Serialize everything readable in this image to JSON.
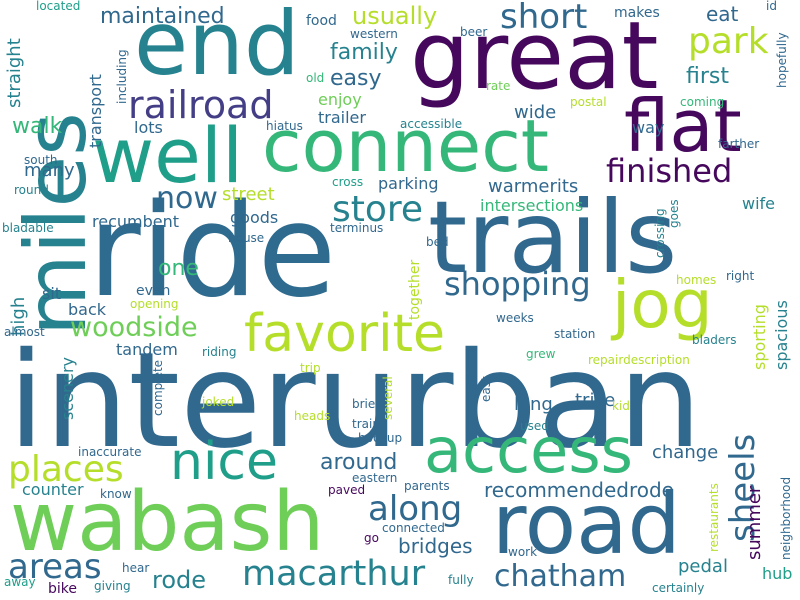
{
  "palette": {
    "dark_purple": "#46085c",
    "indigo": "#433e85",
    "blue": "#31688e",
    "teal": "#26828e",
    "green_teal": "#1f9e89",
    "green": "#35b779",
    "lime": "#6ece58",
    "yellow_green": "#b5de2b"
  },
  "words": [
    "interurban",
    "ride",
    "trails",
    "great",
    "miles",
    "end",
    "wabash",
    "road",
    "well",
    "connect",
    "flat",
    "access",
    "jog",
    "nice",
    "favorite",
    "railroad",
    "macarthur",
    "places",
    "chatham",
    "along",
    "store",
    "shopping",
    "woodside",
    "short",
    "park",
    "finished",
    "sheels",
    "areas",
    "maintained",
    "usually",
    "family",
    "easy",
    "first",
    "eat",
    "walk",
    "now",
    "around",
    "recommendedrode",
    "bridges",
    "rode",
    "summer",
    "one",
    "high",
    "long",
    "trike",
    "change",
    "tandem",
    "pedal",
    "hub",
    "counter",
    "straight",
    "transport",
    "lots",
    "trailer",
    "enjoy",
    "food",
    "western",
    "including",
    "located",
    "beer",
    "makes",
    "id",
    "farther",
    "hopefully",
    "old",
    "rate",
    "postal",
    "coming",
    "hiatus",
    "accessible",
    "way",
    "many",
    "street",
    "warmerits",
    "parking",
    "intersections",
    "wife",
    "recumbent",
    "goods",
    "house",
    "terminus",
    "bed",
    "crossing",
    "homes",
    "right",
    "sporting",
    "spacious",
    "sit",
    "back",
    "even",
    "opening",
    "together",
    "scenery",
    "riding",
    "trip",
    "weeks",
    "station",
    "bladers",
    "grew",
    "repairdescription",
    "almost",
    "complete",
    "joked",
    "heads",
    "brief",
    "several",
    "east",
    "kid",
    "train",
    "hookup",
    "used",
    "inaccurate",
    "know",
    "eastern",
    "paved",
    "parents",
    "connected",
    "go",
    "work",
    "restaurants",
    "neighborhood",
    "hear",
    "giving",
    "away",
    "bike",
    "fully",
    "certainly",
    "south",
    "round",
    "cross",
    "bladable",
    "goes",
    "wide",
    "tandem"
  ]
}
